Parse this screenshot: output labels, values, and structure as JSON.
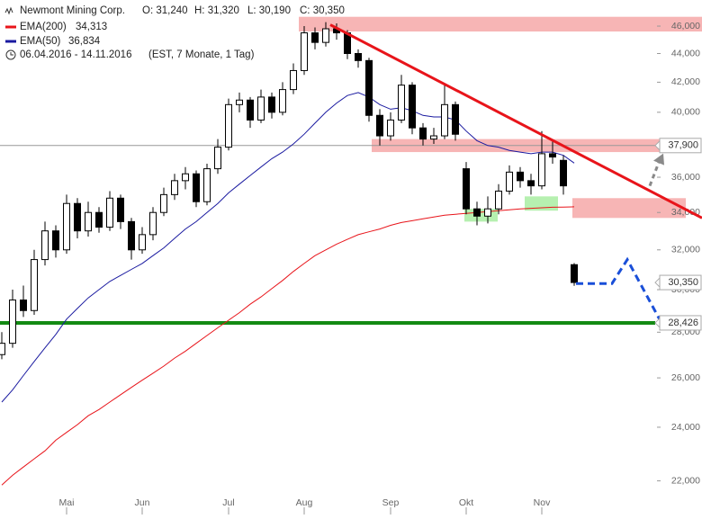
{
  "chart_data": {
    "type": "candlestick",
    "title": "Newmont Mining Corp.",
    "header": {
      "open": "O: 31,240",
      "high": "H: 31,320",
      "low": "L: 30,190",
      "close": "C: 30,350",
      "period": "06.04.2016 - 14.11.2016",
      "info": "(EST, 7 Monate, 1 Tag)"
    },
    "log_scale": true,
    "ylim": [
      21200,
      47990
    ],
    "yticks": [
      {
        "value": 22000,
        "label": "22,000"
      },
      {
        "value": 24000,
        "label": "24,000"
      },
      {
        "value": 26000,
        "label": "26,000"
      },
      {
        "value": 28000,
        "label": "28,000"
      },
      {
        "value": 30000,
        "label": "30,000"
      },
      {
        "value": 32000,
        "label": "32,000"
      },
      {
        "value": 34000,
        "label": "34,000"
      },
      {
        "value": 36000,
        "label": "36,000"
      },
      {
        "value": 38000,
        "label": "38,000"
      },
      {
        "value": 40000,
        "label": "40,000"
      },
      {
        "value": 42000,
        "label": "42,000"
      },
      {
        "value": 44000,
        "label": "44,000"
      },
      {
        "value": 46000,
        "label": "46,000"
      }
    ],
    "categories": [
      null,
      null,
      null,
      null,
      null,
      null,
      "Mai",
      null,
      null,
      null,
      null,
      null,
      null,
      "Jun",
      null,
      null,
      null,
      null,
      null,
      null,
      null,
      "Jul",
      null,
      null,
      null,
      null,
      null,
      null,
      "Aug",
      null,
      null,
      null,
      null,
      null,
      null,
      null,
      "Sep",
      null,
      null,
      null,
      null,
      null,
      null,
      "Okt",
      null,
      null,
      null,
      null,
      null,
      null,
      "Nov",
      null,
      null,
      null
    ],
    "open": [
      27000,
      27500,
      29500,
      29000,
      31500,
      33000,
      32000,
      34500,
      33000,
      34000,
      33200,
      34800,
      33500,
      32000,
      32800,
      34000,
      35000,
      35800,
      36200,
      34600,
      36500,
      37800,
      40500,
      40800,
      39500,
      41000,
      40000,
      41500,
      42800,
      45500,
      44800,
      45800,
      45500,
      44000,
      43500,
      39800,
      38500,
      39500,
      41800,
      39000,
      38300,
      38500,
      40500,
      36500,
      34200,
      33800,
      34200,
      35200,
      36300,
      35800,
      35500,
      37400,
      37000,
      31240
    ],
    "high": [
      28000,
      30000,
      30200,
      32000,
      33500,
      33300,
      35000,
      34800,
      34600,
      34300,
      35200,
      35000,
      33700,
      33200,
      34300,
      35400,
      36200,
      36600,
      36400,
      36800,
      38300,
      40900,
      41300,
      41000,
      41500,
      41300,
      42000,
      43300,
      46000,
      45900,
      46300,
      46200,
      45700,
      44300,
      43700,
      40200,
      40000,
      42500,
      42000,
      39300,
      39000,
      41900,
      40700,
      36900,
      34600,
      34900,
      35600,
      36700,
      36600,
      36200,
      38800,
      38300,
      37300,
      31320
    ],
    "low": [
      26800,
      27300,
      28700,
      28800,
      31200,
      31600,
      31800,
      32600,
      32700,
      32900,
      33000,
      33100,
      31500,
      31800,
      32500,
      33800,
      34700,
      35300,
      34300,
      34400,
      36200,
      37600,
      40000,
      39000,
      39300,
      39600,
      39800,
      41200,
      42500,
      44300,
      44500,
      45000,
      43600,
      43000,
      39400,
      37900,
      38200,
      39300,
      38600,
      37900,
      38000,
      38300,
      38200,
      33900,
      33300,
      33400,
      33900,
      35000,
      35400,
      35000,
      35300,
      36800,
      35000,
      30190
    ],
    "close": [
      27500,
      29500,
      29000,
      31500,
      33000,
      32000,
      34500,
      33000,
      34000,
      33200,
      34800,
      33500,
      32000,
      32800,
      34000,
      35000,
      35800,
      36200,
      34600,
      36500,
      37800,
      40500,
      40800,
      39500,
      41000,
      40000,
      41500,
      42800,
      45500,
      44800,
      45800,
      45500,
      44000,
      43500,
      39800,
      38500,
      39500,
      41800,
      39000,
      38300,
      38500,
      40500,
      38600,
      34200,
      33800,
      34200,
      35200,
      36300,
      35800,
      35500,
      37400,
      37200,
      35500,
      30350
    ],
    "series": [
      {
        "name": "EMA(200)",
        "value_label": "34,313",
        "color": "#e8141a",
        "values": [
          21850,
          22200,
          22500,
          22800,
          23100,
          23500,
          23800,
          24100,
          24450,
          24700,
          25000,
          25300,
          25600,
          25900,
          26200,
          26500,
          26850,
          27150,
          27500,
          27850,
          28200,
          28550,
          28900,
          29300,
          29650,
          30050,
          30450,
          30900,
          31300,
          31700,
          32000,
          32300,
          32550,
          32800,
          32950,
          33100,
          33300,
          33450,
          33550,
          33650,
          33750,
          33850,
          33900,
          33950,
          34000,
          34050,
          34100,
          34150,
          34200,
          34230,
          34260,
          34290,
          34300,
          34313
        ]
      },
      {
        "name": "EMA(50)",
        "value_label": "36,834",
        "color": "#1a1aa0",
        "values": [
          25000,
          25500,
          26100,
          26700,
          27300,
          27900,
          28600,
          29100,
          29600,
          30000,
          30400,
          30700,
          31000,
          31300,
          31700,
          32100,
          32600,
          33100,
          33500,
          34000,
          34500,
          35100,
          35600,
          36100,
          36600,
          37100,
          37500,
          38000,
          38600,
          39300,
          40000,
          40600,
          41100,
          41300,
          41000,
          40500,
          40200,
          40300,
          40100,
          39800,
          39700,
          39700,
          39500,
          38800,
          38200,
          37900,
          37800,
          37600,
          37500,
          37400,
          37500,
          37500,
          37300,
          36834
        ]
      }
    ],
    "zones": [
      {
        "range": [
          45600,
          46700
        ],
        "color": "#f7b5b5"
      },
      {
        "range": [
          37500,
          38300
        ],
        "color": "#f7b5b5"
      },
      {
        "range": [
          33700,
          34800
        ],
        "color": "#f7b5b5"
      },
      {
        "range": [
          33500,
          34200
        ],
        "color": "#b6f0b0"
      },
      {
        "range": [
          34100,
          34900
        ],
        "color": "#b6f0b0"
      }
    ],
    "levels": [
      {
        "value": 37900,
        "label": "37,900",
        "color": "#999999"
      },
      {
        "value": 30350,
        "label": "30,350",
        "color": null
      },
      {
        "value": 28426,
        "label": "28,426",
        "color": "#138a13"
      }
    ],
    "trendline": {
      "values": [
        46100,
        33700
      ],
      "color": "#e8141a"
    },
    "projection": {
      "values": [
        30300,
        30300,
        31500,
        28426
      ],
      "color": "#1a4fd8"
    },
    "arrow": {
      "values": [
        35500,
        37200
      ],
      "color": "#8a8a8a"
    }
  }
}
